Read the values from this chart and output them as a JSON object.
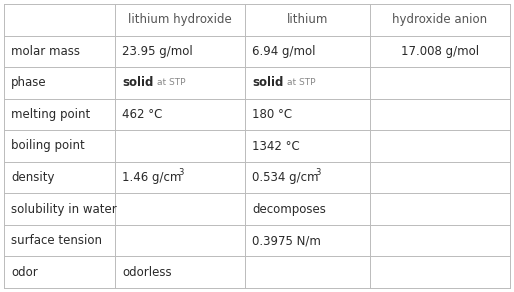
{
  "col_headers": [
    "",
    "lithium hydroxide",
    "lithium",
    "hydroxide anion"
  ],
  "rows": [
    {
      "label": "molar mass",
      "col1": "23.95 g/mol",
      "col2": "6.94 g/mol",
      "col3": "17.008 g/mol",
      "col1_type": "normal",
      "col2_type": "normal"
    },
    {
      "label": "phase",
      "col1": "solid",
      "col2": "solid",
      "col3": "",
      "col1_type": "phase",
      "col2_type": "phase"
    },
    {
      "label": "melting point",
      "col1": "462 °C",
      "col2": "180 °C",
      "col3": "",
      "col1_type": "normal",
      "col2_type": "normal"
    },
    {
      "label": "boiling point",
      "col1": "",
      "col2": "1342 °C",
      "col3": "",
      "col1_type": "normal",
      "col2_type": "normal"
    },
    {
      "label": "density",
      "col1": "1.46 g/cm",
      "col2": "0.534 g/cm",
      "col3": "",
      "col1_type": "density",
      "col2_type": "density"
    },
    {
      "label": "solubility in water",
      "col1": "",
      "col2": "decomposes",
      "col3": "",
      "col1_type": "normal",
      "col2_type": "normal"
    },
    {
      "label": "surface tension",
      "col1": "",
      "col2": "0.3975 N/m",
      "col3": "",
      "col1_type": "normal",
      "col2_type": "normal"
    },
    {
      "label": "odor",
      "col1": "odorless",
      "col2": "",
      "col3": "",
      "col1_type": "normal",
      "col2_type": "normal"
    }
  ],
  "bg_color": "#ffffff",
  "line_color": "#bbbbbb",
  "text_color": "#2a2a2a",
  "header_text_color": "#555555",
  "font_size": 8.5,
  "header_font_size": 8.5,
  "label_font_size": 8.5,
  "phase_sub_color": "#888888",
  "phase_sub_size": 6.5,
  "superscript_size": 6.0
}
